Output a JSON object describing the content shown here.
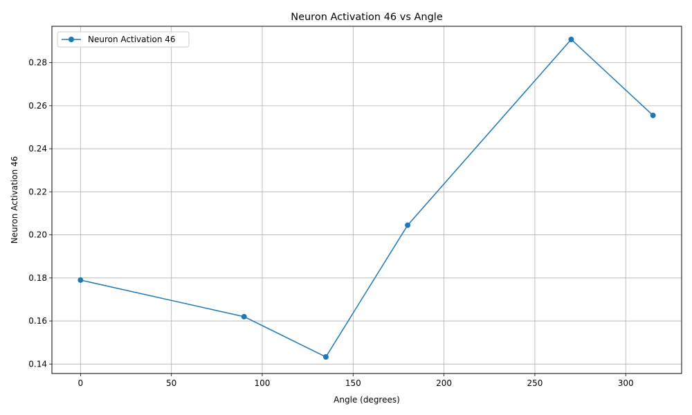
{
  "chart_data": {
    "type": "line",
    "title": "Neuron Activation 46 vs Angle",
    "xlabel": "Angle (degrees)",
    "ylabel": "Neuron Activation 46",
    "xlim": [
      -15.75,
      330.75
    ],
    "ylim": [
      0.1356,
      0.2969
    ],
    "x_ticks": [
      0,
      50,
      100,
      150,
      200,
      250,
      300
    ],
    "y_ticks": [
      0.14,
      0.16,
      0.18,
      0.2,
      0.22,
      0.24,
      0.26,
      0.28
    ],
    "x_tick_labels": [
      "0",
      "50",
      "100",
      "150",
      "200",
      "250",
      "300"
    ],
    "y_tick_labels": [
      "0.14",
      "0.16",
      "0.18",
      "0.20",
      "0.22",
      "0.24",
      "0.26",
      "0.28"
    ],
    "grid": true,
    "legend_position": "top-left",
    "series": [
      {
        "name": "Neuron Activation 46",
        "color": "#1f77b4",
        "marker": "circle",
        "x": [
          0,
          90,
          135,
          180,
          270,
          315
        ],
        "y": [
          0.179,
          0.162,
          0.1433,
          0.2045,
          0.2908,
          0.2555
        ]
      }
    ]
  }
}
